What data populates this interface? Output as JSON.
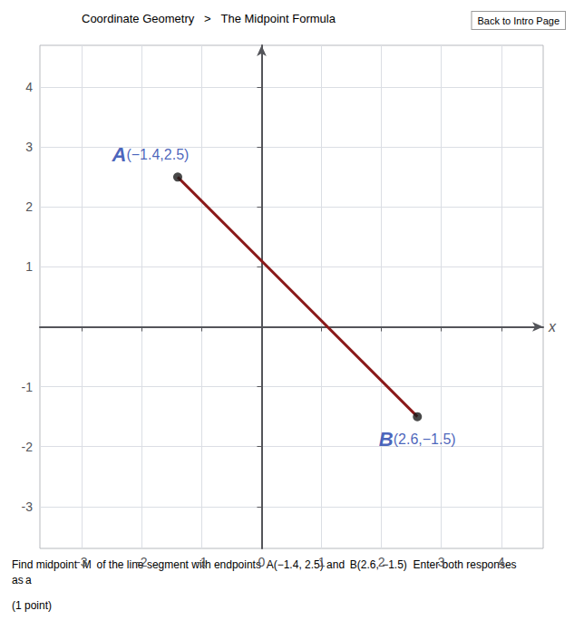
{
  "chart_data": {
    "type": "line",
    "xlim": [
      -3.7,
      4.7
    ],
    "ylim": [
      -3.7,
      4.7
    ],
    "xticks": [
      -3,
      -2,
      -1,
      0,
      1,
      2,
      3,
      4
    ],
    "yticks": [
      -3,
      -2,
      -1,
      1,
      2,
      3,
      4
    ],
    "xlabel": "x",
    "grid": true,
    "series": [
      {
        "type": "line",
        "color": "#8B1A1A",
        "marker": "none",
        "x": [
          -1.4,
          2.6
        ],
        "values": [
          2.5,
          -1.5
        ]
      },
      {
        "type": "scatter",
        "color": "#1a1a1a",
        "marker": "circle",
        "x": [
          -1.4,
          2.6
        ],
        "values": [
          2.5,
          -1.5
        ]
      }
    ],
    "annotations": [
      {
        "text": "Coordinate Geometry"
      },
      {
        "text": ">"
      },
      {
        "text": "The Midpoint Formula"
      },
      {
        "text": "Back to Intro Page"
      },
      {
        "text": "Find midpoint  M  of the line segment with endpoints  A(−1.4, 2.5) and  B(2.6, −1.5)  Enter both responses as a"
      },
      {
        "text": "(1 point)"
      },
      {
        "text": "A",
        "x": -1.4,
        "y": 2.5,
        "color": "#1a3caa"
      },
      {
        "text": "(−1.4,2.5)",
        "x": -1.4,
        "y": 2.5,
        "color": "#1a3caa"
      },
      {
        "text": "B",
        "x": 2.6,
        "y": -1.5,
        "color": "#1a3caa"
      },
      {
        "text": "(2.6,−1.5)",
        "x": 2.6,
        "y": -1.5,
        "color": "#1a3caa"
      }
    ]
  }
}
